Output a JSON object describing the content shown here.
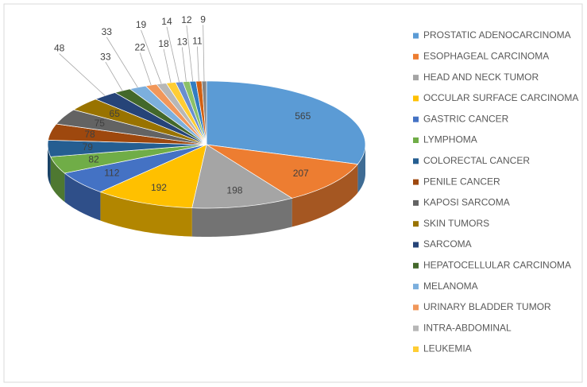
{
  "chart_data": {
    "type": "pie3d",
    "categories": [
      "PROSTATIC ADENOCARCINOMA",
      "ESOPHAGEAL CARCINOMA",
      "HEAD AND NECK TUMOR",
      "OCCULAR SURFACE CARCINOMA",
      "GASTRIC CANCER",
      "LYMPHOMA",
      "COLORECTAL CANCER",
      "PENILE CANCER",
      "KAPOSI SARCOMA",
      "SKIN TUMORS",
      "SARCOMA",
      "HEPATOCELLULAR CARCINOMA",
      "MELANOMA",
      "URINARY BLADDER TUMOR",
      "INTRA-ABDOMINAL",
      "LEUKEMIA",
      null,
      null,
      null,
      null,
      null
    ],
    "values": [
      565,
      207,
      198,
      192,
      112,
      82,
      79,
      78,
      75,
      65,
      48,
      33,
      33,
      22,
      19,
      18,
      14,
      13,
      12,
      11,
      9
    ],
    "colors": [
      "#5b9bd5",
      "#ed7d31",
      "#a5a5a5",
      "#ffc000",
      "#4472c4",
      "#70ad47",
      "#255e91",
      "#9e480e",
      "#636363",
      "#997300",
      "#264478",
      "#43682b",
      "#7cafdd",
      "#f1975a",
      "#b7b7b7",
      "#ffcd33",
      "#698ed0",
      "#8cc168",
      "#327dc2",
      "#d26012",
      "#848484"
    ],
    "legend": "right"
  }
}
